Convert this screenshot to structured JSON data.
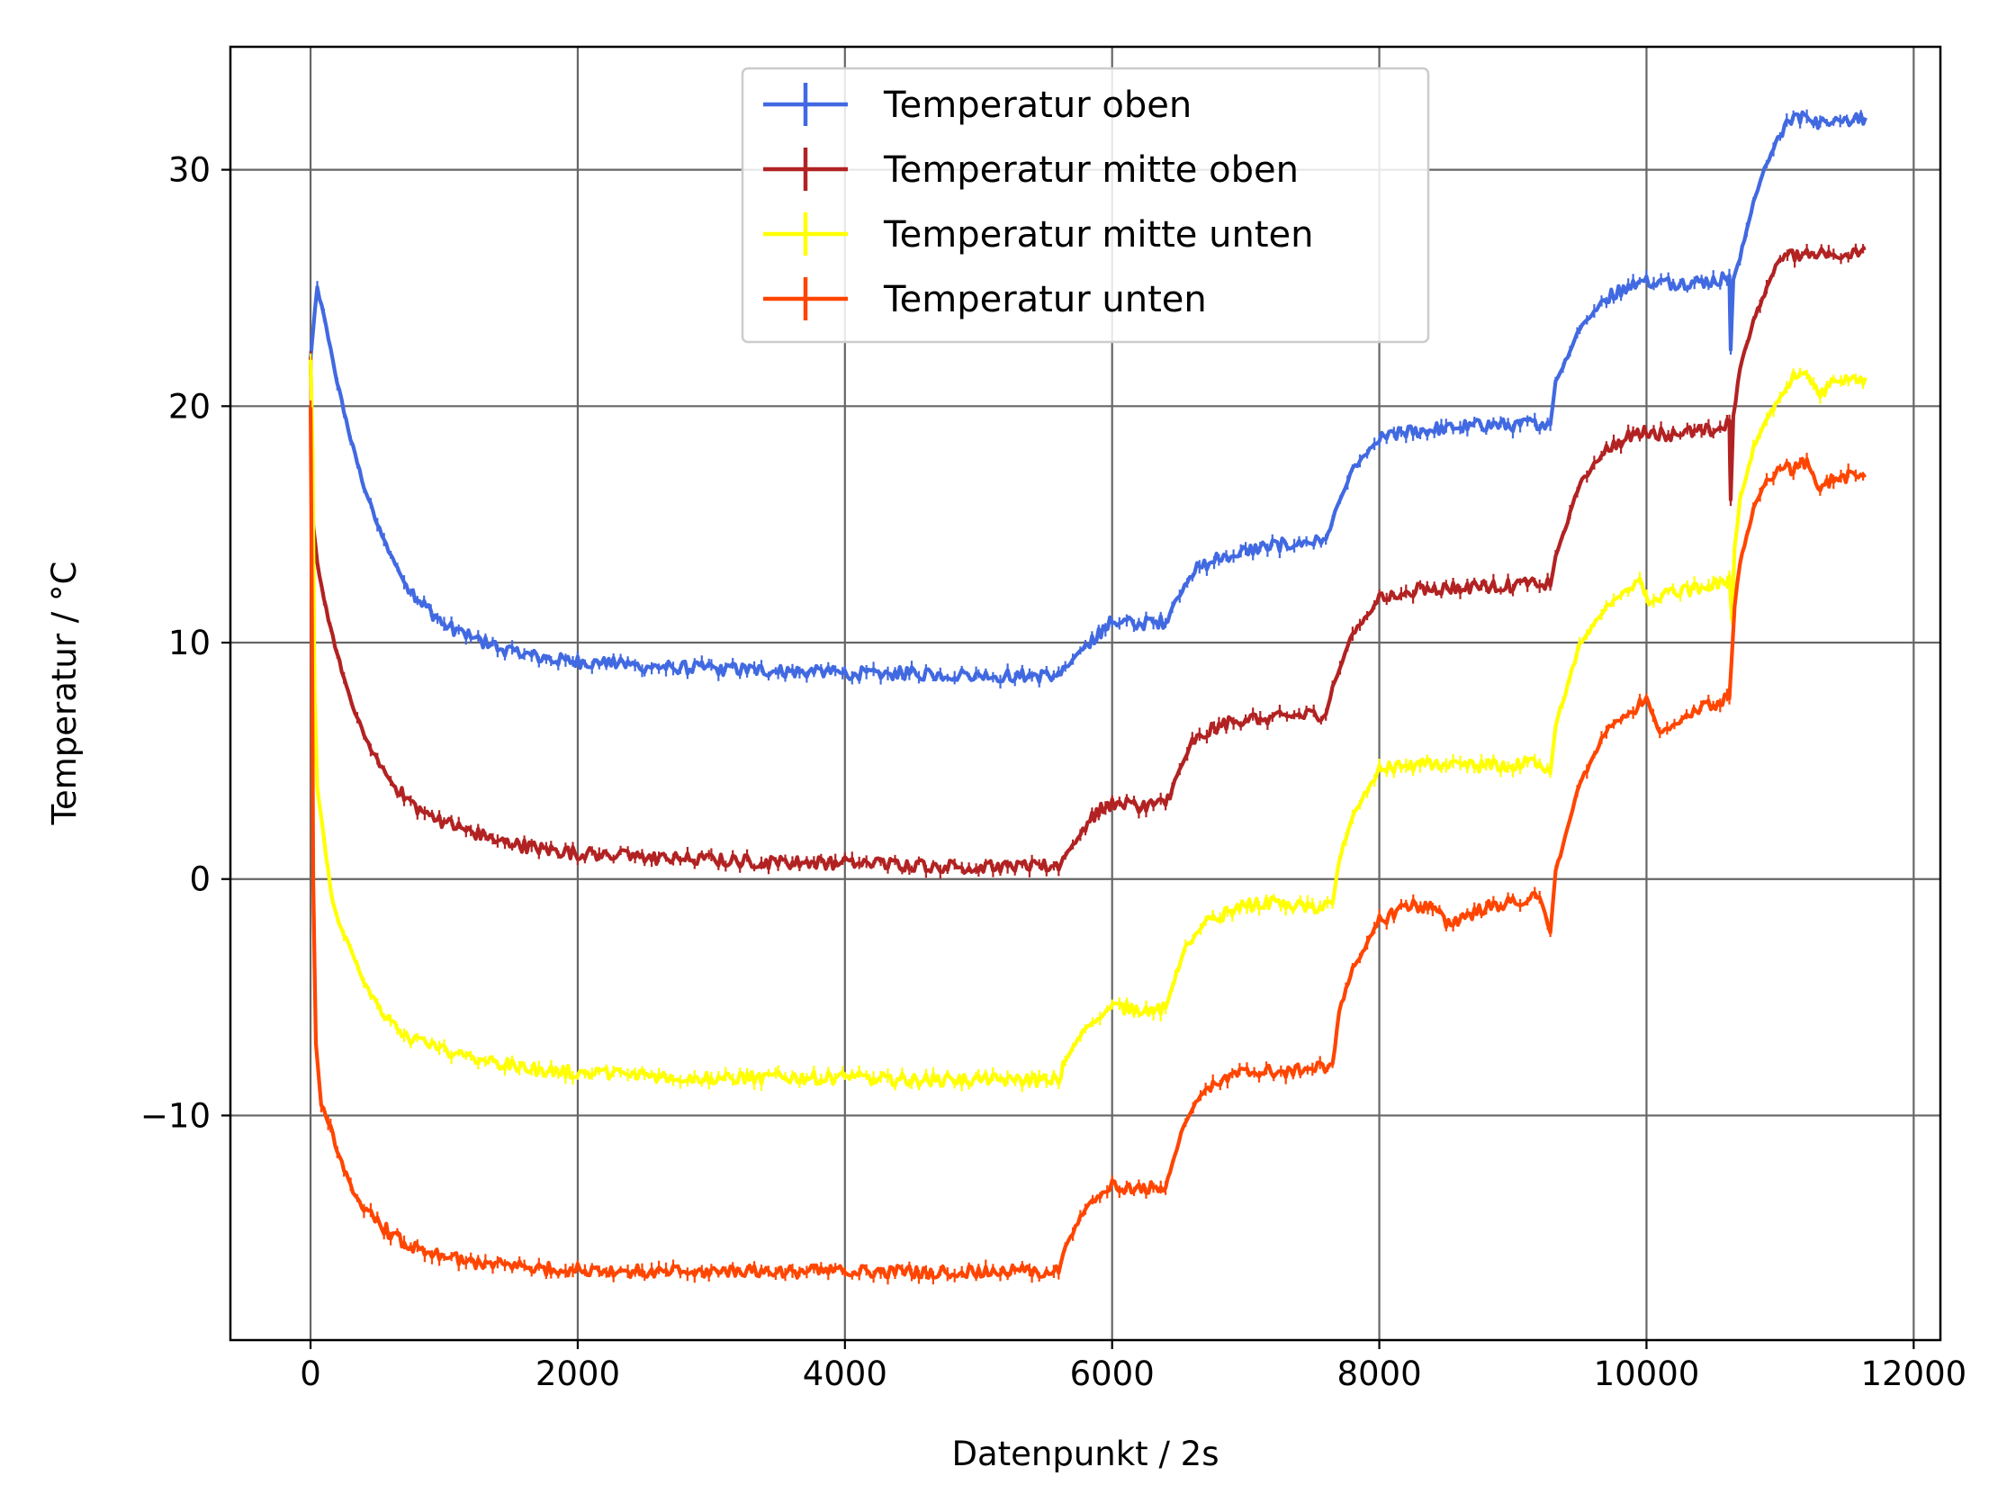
{
  "chart_data": {
    "type": "line",
    "title": "",
    "xlabel": "Datenpunkt / 2s",
    "ylabel": "Temperatur / °C",
    "xlim": [
      -600,
      12200
    ],
    "ylim": [
      -19.5,
      35.2
    ],
    "xticks": [
      0,
      2000,
      4000,
      6000,
      8000,
      10000,
      12000
    ],
    "yticks": [
      -10,
      0,
      10,
      20,
      30
    ],
    "xtick_labels": [
      "0",
      "2000",
      "4000",
      "6000",
      "8000",
      "10000",
      "12000"
    ],
    "ytick_labels": [
      "−10",
      "0",
      "10",
      "20",
      "30"
    ],
    "grid": true,
    "legend_position": "upper center",
    "series": [
      {
        "name": "Temperatur oben",
        "color": "#4169e1",
        "x": [
          0,
          50,
          100,
          200,
          300,
          400,
          500,
          600,
          700,
          800,
          900,
          1000,
          1200,
          1400,
          1600,
          1800,
          2000,
          2500,
          3000,
          3500,
          4000,
          4500,
          5000,
          5400,
          5600,
          5650,
          5800,
          5900,
          6000,
          6200,
          6400,
          6450,
          6600,
          6800,
          7000,
          7200,
          7400,
          7600,
          7650,
          7800,
          8000,
          8200,
          8500,
          8800,
          9000,
          9200,
          9280,
          9320,
          9500,
          9700,
          9900,
          10000,
          10200,
          10500,
          10620,
          10630,
          10650,
          10700,
          10800,
          10900,
          11000,
          11100,
          11200,
          11300,
          11400,
          11500,
          11640
        ],
        "y": [
          22,
          25,
          23.8,
          21,
          18.6,
          16.6,
          15,
          13.7,
          12.6,
          11.9,
          11.3,
          10.8,
          10.2,
          9.8,
          9.5,
          9.3,
          9.2,
          9.0,
          8.9,
          8.8,
          8.7,
          8.7,
          8.6,
          8.6,
          8.6,
          8.9,
          9.8,
          10.4,
          10.9,
          10.8,
          10.9,
          11.5,
          13.0,
          13.6,
          13.9,
          14.1,
          14.2,
          14.3,
          15.2,
          17.3,
          18.6,
          18.9,
          19.1,
          19.2,
          19.2,
          19.3,
          19.3,
          21,
          23.3,
          24.6,
          25.2,
          25.3,
          25.2,
          25.3,
          25.5,
          22.3,
          25.4,
          26.3,
          28.6,
          30.3,
          31.5,
          32.2,
          32.3,
          31.9,
          32.2,
          32.1,
          32.2
        ]
      },
      {
        "name": "Temperatur mitte oben",
        "color": "#b22222",
        "x": [
          0,
          20,
          50,
          100,
          200,
          300,
          400,
          500,
          600,
          700,
          800,
          1000,
          1200,
          1400,
          1600,
          1800,
          2000,
          2500,
          3000,
          3500,
          4000,
          4500,
          5000,
          5400,
          5600,
          5650,
          5800,
          5900,
          6000,
          6200,
          6400,
          6450,
          6600,
          6800,
          7000,
          7200,
          7400,
          7600,
          7650,
          7800,
          8000,
          8200,
          8500,
          8800,
          9000,
          9200,
          9280,
          9320,
          9500,
          9700,
          9900,
          10000,
          10200,
          10500,
          10620,
          10630,
          10650,
          10700,
          10800,
          10900,
          11000,
          11200,
          11400,
          11640
        ],
        "y": [
          22,
          15,
          13.3,
          11.8,
          9.5,
          7.5,
          6.1,
          5.0,
          4.1,
          3.5,
          3.0,
          2.4,
          2.0,
          1.6,
          1.4,
          1.2,
          1.1,
          0.9,
          0.8,
          0.7,
          0.7,
          0.6,
          0.5,
          0.5,
          0.6,
          1.0,
          2.2,
          2.9,
          3.2,
          3.1,
          3.2,
          3.9,
          5.8,
          6.5,
          6.8,
          6.8,
          6.9,
          7.0,
          8.1,
          10.4,
          11.8,
          12.2,
          12.3,
          12.4,
          12.4,
          12.5,
          12.4,
          13.6,
          16.7,
          18.2,
          18.8,
          18.9,
          18.8,
          19.0,
          19.3,
          16.0,
          19.5,
          21.6,
          23.6,
          25.0,
          26.3,
          26.5,
          26.4,
          26.7
        ]
      },
      {
        "name": "Temperatur mitte unten",
        "color": "#ffff00",
        "x": [
          0,
          15,
          30,
          50,
          100,
          150,
          200,
          300,
          400,
          500,
          600,
          700,
          800,
          1000,
          1200,
          1400,
          1600,
          1800,
          2000,
          2500,
          3000,
          3500,
          4000,
          4500,
          5000,
          5400,
          5600,
          5650,
          5800,
          6000,
          6200,
          6400,
          6450,
          6550,
          6700,
          6900,
          7100,
          7300,
          7500,
          7650,
          7700,
          7800,
          8000,
          8200,
          8500,
          8800,
          9000,
          9200,
          9280,
          9320,
          9500,
          9700,
          9900,
          9950,
          10000,
          10200,
          10500,
          10620,
          10640,
          10660,
          10700,
          10800,
          10900,
          11000,
          11100,
          11200,
          11300,
          11400,
          11640
        ],
        "y": [
          22,
          18,
          8,
          3.8,
          1.7,
          -0.5,
          -1.7,
          -3.0,
          -4.4,
          -5.3,
          -6.1,
          -6.6,
          -6.9,
          -7.2,
          -7.5,
          -7.8,
          -8.0,
          -8.1,
          -8.2,
          -8.3,
          -8.4,
          -8.4,
          -8.4,
          -8.5,
          -8.5,
          -8.5,
          -8.5,
          -7.7,
          -6.3,
          -5.4,
          -5.5,
          -5.5,
          -4.5,
          -2.9,
          -1.9,
          -1.3,
          -1.0,
          -1.1,
          -1.2,
          -1.1,
          0.8,
          2.7,
          4.6,
          4.8,
          4.8,
          4.8,
          4.8,
          5.0,
          4.5,
          6.5,
          9.9,
          11.5,
          12.4,
          12.8,
          11.7,
          12.1,
          12.4,
          12.8,
          11.0,
          14.0,
          16.0,
          18.2,
          19.5,
          20.3,
          21.2,
          21.3,
          20.5,
          21.1,
          21.2
        ]
      },
      {
        "name": "Temperatur unten",
        "color": "#ff4500",
        "x": [
          0,
          10,
          20,
          40,
          80,
          150,
          200,
          300,
          400,
          500,
          600,
          700,
          800,
          1000,
          1200,
          1400,
          1600,
          1800,
          2000,
          2500,
          3000,
          3500,
          4000,
          4500,
          5000,
          5400,
          5600,
          5650,
          5800,
          6000,
          6200,
          6400,
          6450,
          6550,
          6700,
          6900,
          7100,
          7300,
          7500,
          7650,
          7700,
          7800,
          8000,
          8200,
          8400,
          8500,
          8800,
          9000,
          9200,
          9280,
          9320,
          9500,
          9700,
          9900,
          10000,
          10100,
          10300,
          10500,
          10620,
          10660,
          10700,
          10800,
          10900,
          11000,
          11100,
          11200,
          11300,
          11400,
          11640
        ],
        "y": [
          20,
          12,
          0,
          -7,
          -9.5,
          -10.5,
          -11.5,
          -13,
          -14,
          -14.5,
          -15.0,
          -15.4,
          -15.7,
          -16.0,
          -16.2,
          -16.3,
          -16.4,
          -16.5,
          -16.5,
          -16.6,
          -16.6,
          -16.6,
          -16.6,
          -16.6,
          -16.6,
          -16.6,
          -16.6,
          -15.6,
          -13.9,
          -13.0,
          -13.1,
          -13.0,
          -12.0,
          -10.2,
          -8.8,
          -8.3,
          -8.1,
          -8.2,
          -8.0,
          -7.9,
          -5.6,
          -3.8,
          -1.8,
          -1.1,
          -1.2,
          -1.9,
          -1.2,
          -1.0,
          -0.8,
          -2.2,
          0.3,
          4.0,
          6.3,
          7.2,
          7.6,
          6.1,
          6.9,
          7.4,
          7.6,
          11.6,
          13.4,
          15.6,
          16.9,
          17.4,
          17.3,
          17.7,
          16.4,
          17.0,
          17.1
        ]
      }
    ]
  }
}
